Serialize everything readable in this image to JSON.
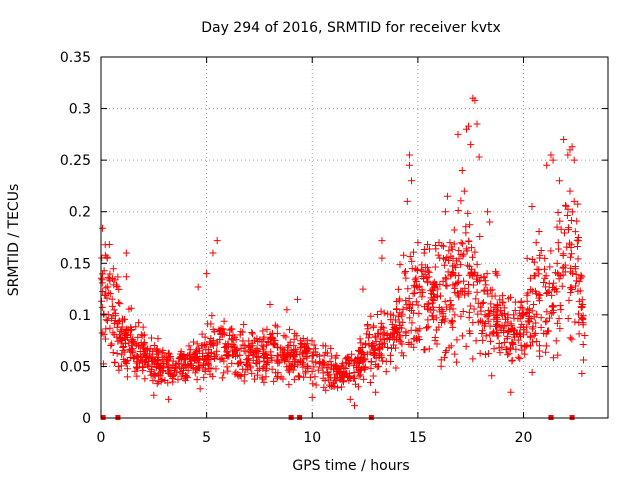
{
  "chart_data": {
    "type": "scatter",
    "title": "Day 294 of 2016, SRMTID for receiver kvtx",
    "xlabel": "GPS time / hours",
    "ylabel": "SRMTID / TECUs",
    "xlim": [
      0,
      24
    ],
    "ylim": [
      0,
      0.35
    ],
    "xticks": [
      0,
      5,
      10,
      15,
      20
    ],
    "xtick_labels": [
      "0",
      "5",
      "10",
      "15",
      "20"
    ],
    "yticks": [
      0,
      0.05,
      0.1,
      0.15,
      0.2,
      0.25,
      0.3,
      0.35
    ],
    "ytick_labels": [
      "0",
      "0.05",
      "0.1",
      "0.15",
      "0.2",
      "0.25",
      "0.3",
      "0.35"
    ],
    "grid": true,
    "marker": "+",
    "color": "#ff0000",
    "series": [
      {
        "name": "SRMTID",
        "trend": [
          [
            0.0,
            0.12
          ],
          [
            0.3,
            0.11
          ],
          [
            0.6,
            0.1
          ],
          [
            1.0,
            0.085
          ],
          [
            1.5,
            0.07
          ],
          [
            2.0,
            0.062
          ],
          [
            2.5,
            0.055
          ],
          [
            3.0,
            0.05
          ],
          [
            3.5,
            0.048
          ],
          [
            4.0,
            0.05
          ],
          [
            4.5,
            0.055
          ],
          [
            5.0,
            0.065
          ],
          [
            5.5,
            0.075
          ],
          [
            6.0,
            0.07
          ],
          [
            6.5,
            0.062
          ],
          [
            7.0,
            0.06
          ],
          [
            7.5,
            0.06
          ],
          [
            8.0,
            0.065
          ],
          [
            8.5,
            0.06
          ],
          [
            9.0,
            0.058
          ],
          [
            9.5,
            0.058
          ],
          [
            10.0,
            0.055
          ],
          [
            10.5,
            0.052
          ],
          [
            11.0,
            0.045
          ],
          [
            11.5,
            0.042
          ],
          [
            12.0,
            0.048
          ],
          [
            12.5,
            0.06
          ],
          [
            13.0,
            0.07
          ],
          [
            13.5,
            0.08
          ],
          [
            14.0,
            0.09
          ],
          [
            14.5,
            0.11
          ],
          [
            15.0,
            0.115
          ],
          [
            15.5,
            0.12
          ],
          [
            16.0,
            0.11
          ],
          [
            16.5,
            0.12
          ],
          [
            17.0,
            0.14
          ],
          [
            17.5,
            0.13
          ],
          [
            18.0,
            0.11
          ],
          [
            18.5,
            0.1
          ],
          [
            19.0,
            0.09
          ],
          [
            19.5,
            0.08
          ],
          [
            20.0,
            0.09
          ],
          [
            20.5,
            0.11
          ],
          [
            21.0,
            0.12
          ],
          [
            21.5,
            0.13
          ],
          [
            22.0,
            0.15
          ],
          [
            22.5,
            0.14
          ],
          [
            22.8,
            0.1
          ]
        ],
        "peaks": [
          [
            0.2,
            0.168
          ],
          [
            0.3,
            0.155
          ],
          [
            1.2,
            0.16
          ],
          [
            1.2,
            0.137
          ],
          [
            5.5,
            0.172
          ],
          [
            5.3,
            0.16
          ],
          [
            5.0,
            0.14
          ],
          [
            4.6,
            0.127
          ],
          [
            8.0,
            0.11
          ],
          [
            8.8,
            0.105
          ],
          [
            9.3,
            0.115
          ],
          [
            12.4,
            0.125
          ],
          [
            13.3,
            0.155
          ],
          [
            13.3,
            0.172
          ],
          [
            14.6,
            0.255
          ],
          [
            14.6,
            0.245
          ],
          [
            14.7,
            0.23
          ],
          [
            14.5,
            0.21
          ],
          [
            15.0,
            0.17
          ],
          [
            15.3,
            0.16
          ],
          [
            16.0,
            0.17
          ],
          [
            16.3,
            0.2
          ],
          [
            16.4,
            0.215
          ],
          [
            16.9,
            0.275
          ],
          [
            17.1,
            0.24
          ],
          [
            17.3,
            0.28
          ],
          [
            17.4,
            0.283
          ],
          [
            17.6,
            0.31
          ],
          [
            17.7,
            0.308
          ],
          [
            17.8,
            0.285
          ],
          [
            17.9,
            0.253
          ],
          [
            17.5,
            0.265
          ],
          [
            17.2,
            0.22
          ],
          [
            18.3,
            0.2
          ],
          [
            18.4,
            0.19
          ],
          [
            20.4,
            0.205
          ],
          [
            20.6,
            0.17
          ],
          [
            21.1,
            0.245
          ],
          [
            21.3,
            0.255
          ],
          [
            21.4,
            0.25
          ],
          [
            21.7,
            0.23
          ],
          [
            21.9,
            0.27
          ],
          [
            22.1,
            0.255
          ],
          [
            22.2,
            0.26
          ],
          [
            22.3,
            0.263
          ],
          [
            22.4,
            0.25
          ],
          [
            22.2,
            0.22
          ],
          [
            22.4,
            0.21
          ],
          [
            22.6,
            0.175
          ],
          [
            22.8,
            0.11
          ],
          [
            22.9,
            0.08
          ],
          [
            11.8,
            0.018
          ],
          [
            12.0,
            0.012
          ],
          [
            13.0,
            0.025
          ],
          [
            13.5,
            0.045
          ],
          [
            10.0,
            0.02
          ],
          [
            3.2,
            0.018
          ],
          [
            19.4,
            0.025
          ],
          [
            2.5,
            0.022
          ]
        ],
        "zero_markers_x": [
          0.1,
          0.8,
          9.0,
          9.4,
          12.8,
          21.3,
          22.3
        ]
      }
    ]
  }
}
